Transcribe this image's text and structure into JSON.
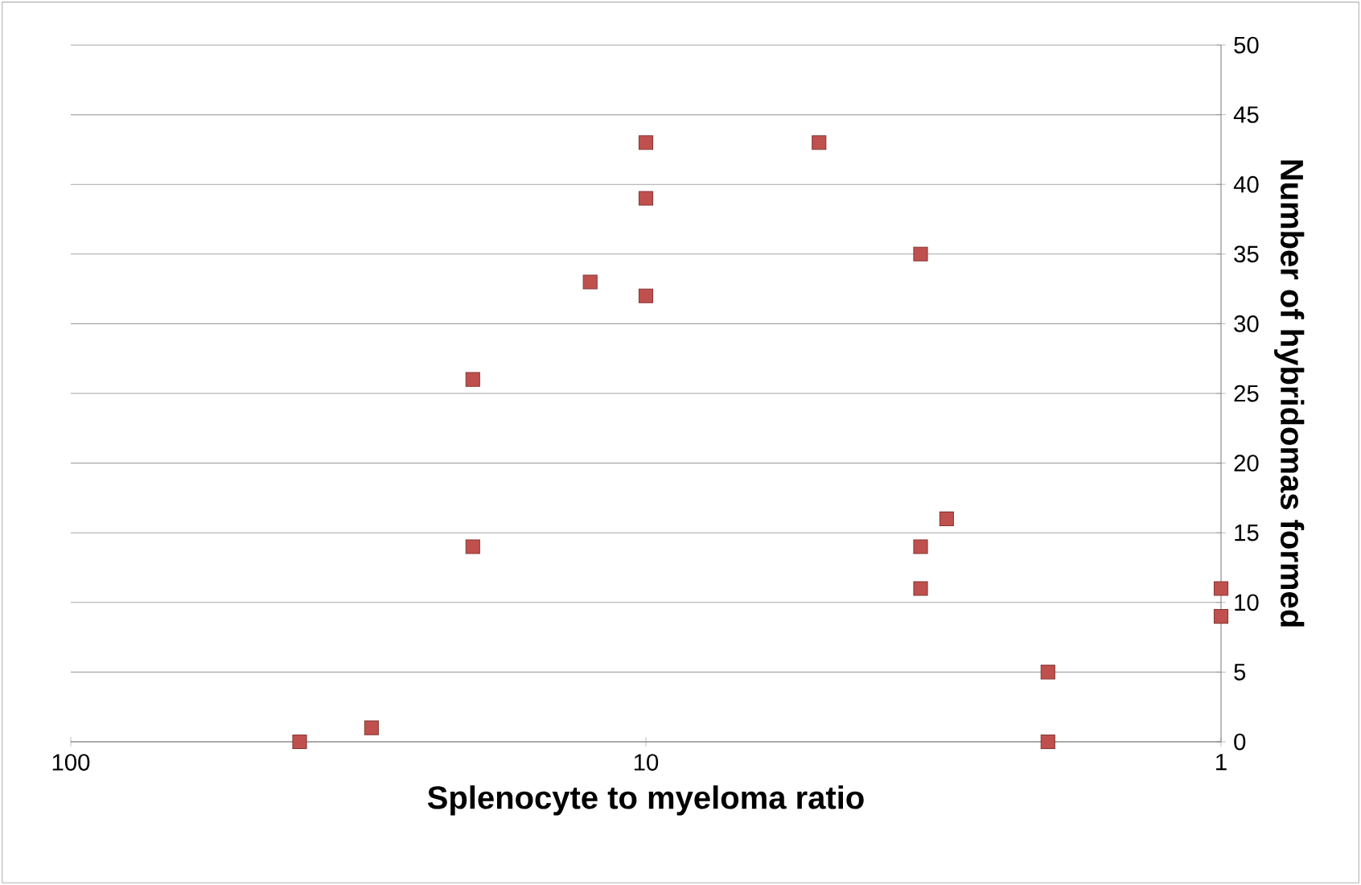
{
  "chart_data": {
    "type": "scatter",
    "xlabel": "Splenocyte to myeloma ratio",
    "ylabel": "Number of hybridomas formed",
    "x": [
      40,
      30,
      20,
      20,
      12.5,
      10,
      10,
      10,
      5,
      3.33,
      3.33,
      3.33,
      3,
      2,
      2,
      1,
      1
    ],
    "values": [
      0,
      1,
      26,
      14,
      33,
      43,
      39,
      32,
      43,
      35,
      14,
      11,
      16,
      5,
      0,
      11,
      9
    ],
    "color": "#c0504d",
    "marker": "square",
    "log": "x",
    "xlim": [
      100,
      1
    ],
    "xticks": [
      100,
      10,
      1
    ],
    "ylim": [
      0,
      50
    ],
    "yticks": [
      0,
      5,
      10,
      15,
      20,
      25,
      30,
      35,
      40,
      45,
      50
    ],
    "grid": "y"
  }
}
